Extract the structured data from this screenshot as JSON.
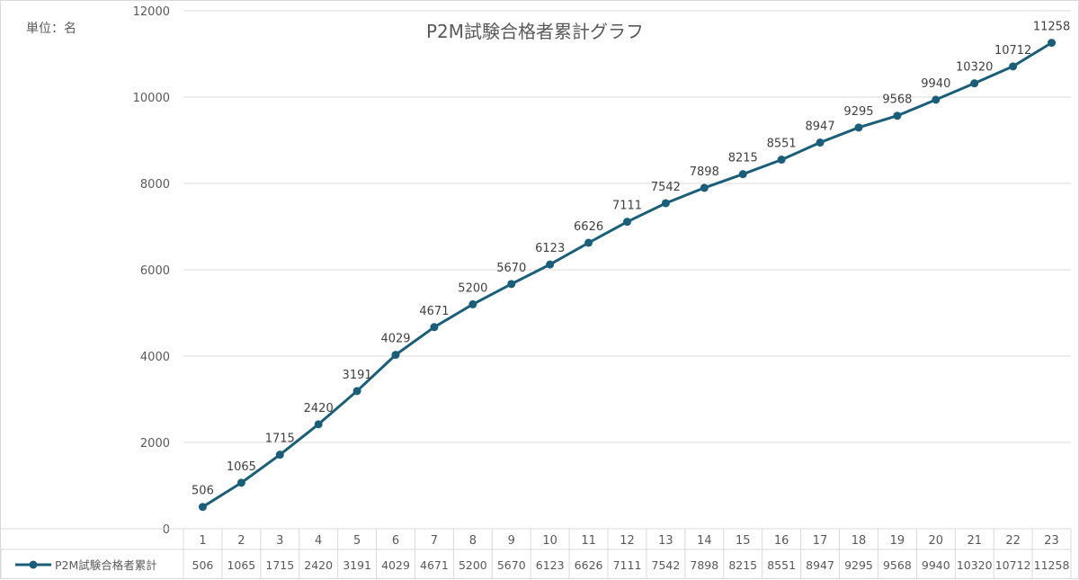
{
  "unit_label": "単位：名",
  "chart_data": {
    "type": "line",
    "title": "P2M試験合格者累計グラフ",
    "xlabel": "",
    "ylabel": "",
    "ylim": [
      0,
      12000
    ],
    "y_ticks": [
      0,
      2000,
      4000,
      6000,
      8000,
      10000,
      12000
    ],
    "grid": true,
    "legend": "table-left",
    "categories": [
      "1",
      "2",
      "3",
      "4",
      "5",
      "6",
      "7",
      "8",
      "9",
      "10",
      "11",
      "12",
      "13",
      "14",
      "15",
      "16",
      "17",
      "18",
      "19",
      "20",
      "21",
      "22",
      "23"
    ],
    "series": [
      {
        "name": "P2M試験合格者累計",
        "color": "#1b5e7a",
        "values": [
          506,
          1065,
          1715,
          2420,
          3191,
          4029,
          4671,
          5200,
          5670,
          6123,
          6626,
          7111,
          7542,
          7898,
          8215,
          8551,
          8947,
          9295,
          9568,
          9940,
          10320,
          10712,
          11258
        ]
      }
    ]
  }
}
